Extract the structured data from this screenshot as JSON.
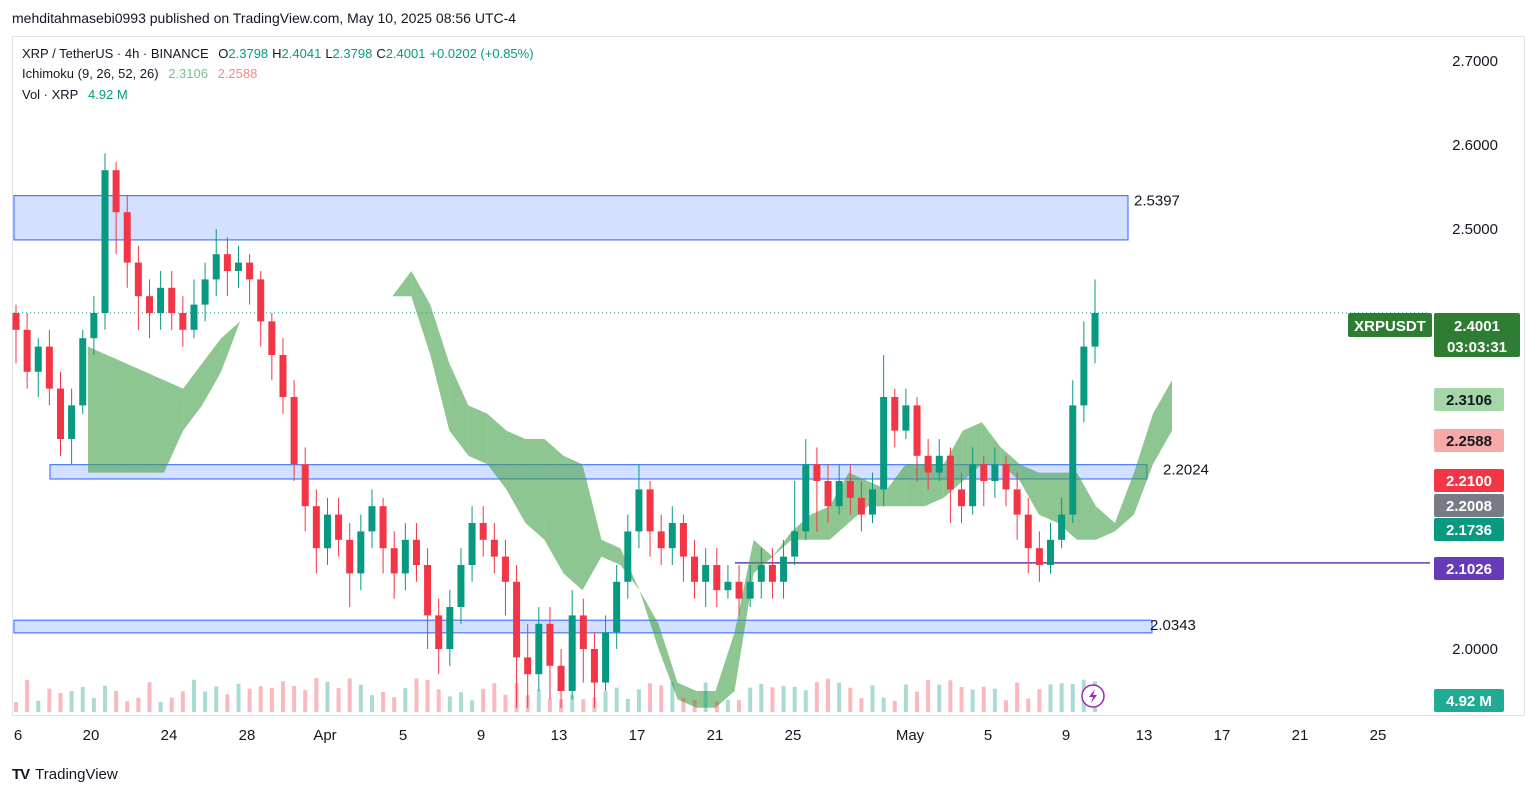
{
  "header": {
    "published": "mehditahmasebi0993 published on TradingView.com, May 10, 2025 08:56 UTC-4"
  },
  "legend": {
    "symbol": "XRP / TetherUS · 4h · BINANCE",
    "o_label": "O",
    "o": "2.3798",
    "h_label": "H",
    "h": "2.4041",
    "l_label": "L",
    "l": "2.3798",
    "c_label": "C",
    "c": "2.4001",
    "change": "+0.0202 (+0.85%)",
    "ichimoku_label": "Ichimoku (9, 26, 52, 26)",
    "ichimoku_v1": "2.3106",
    "ichimoku_v2": "2.2588",
    "vol_label": "Vol · XRP",
    "vol_value": "4.92 M"
  },
  "footer": {
    "brand": "TradingView",
    "logo_text": "TV"
  },
  "chart_data": {
    "type": "candlestick",
    "symbol": "XRPUSDT",
    "interval": "4h",
    "y_ticks": [
      "2.7000",
      "2.6000",
      "2.5000",
      "2.0000"
    ],
    "ylim": [
      1.925,
      2.725
    ],
    "x_ticks": [
      "6",
      "20",
      "24",
      "28",
      "Apr",
      "5",
      "9",
      "13",
      "17",
      "21",
      "25",
      "May",
      "5",
      "9",
      "13",
      "17",
      "21",
      "25"
    ],
    "last_price": {
      "symbol": "XRPUSDT",
      "value": "2.4001",
      "countdown": "03:03:31"
    },
    "price_tags": [
      {
        "label": "2.3106",
        "value": 2.3106,
        "color": "#a5d6a7",
        "text_color": "#131722"
      },
      {
        "label": "2.2588",
        "value": 2.2588,
        "color": "#f7a9a7",
        "text_color": "#131722"
      },
      {
        "label": "2.2100",
        "value": 2.21,
        "color": "#f23645",
        "text_color": "#ffffff"
      },
      {
        "label": "2.2008",
        "value": 2.2008,
        "color": "#787b86",
        "text_color": "#ffffff"
      },
      {
        "label": "2.1736",
        "value": 2.1736,
        "color": "#089981",
        "text_color": "#ffffff"
      },
      {
        "label": "2.1026",
        "value": 2.1026,
        "color": "#673ab7",
        "text_color": "#ffffff"
      },
      {
        "label": "4.92 M",
        "value": null,
        "color": "#22ab94",
        "text_color": "#ffffff"
      }
    ],
    "zones": [
      {
        "label": "2.5397",
        "top": 2.5397,
        "bottom": 2.487
      },
      {
        "label": "2.2024",
        "top": 2.2194,
        "bottom": 2.2024
      },
      {
        "label": "2.0343",
        "top": 2.0343,
        "bottom": 2.0192
      }
    ],
    "horizontal_line": {
      "value": 2.1026,
      "color": "#673ab7"
    },
    "candles": [
      [
        2.4,
        2.38,
        2.41,
        2.34
      ],
      [
        2.38,
        2.33,
        2.4,
        2.31
      ],
      [
        2.33,
        2.36,
        2.37,
        2.3
      ],
      [
        2.36,
        2.31,
        2.38,
        2.29
      ],
      [
        2.31,
        2.25,
        2.33,
        2.23
      ],
      [
        2.25,
        2.29,
        2.31,
        2.22
      ],
      [
        2.29,
        2.37,
        2.38,
        2.28
      ],
      [
        2.37,
        2.4,
        2.42,
        2.35
      ],
      [
        2.4,
        2.57,
        2.59,
        2.38
      ],
      [
        2.57,
        2.52,
        2.58,
        2.47
      ],
      [
        2.52,
        2.46,
        2.54,
        2.43
      ],
      [
        2.46,
        2.42,
        2.48,
        2.38
      ],
      [
        2.42,
        2.4,
        2.44,
        2.37
      ],
      [
        2.4,
        2.43,
        2.45,
        2.38
      ],
      [
        2.43,
        2.4,
        2.45,
        2.38
      ],
      [
        2.4,
        2.38,
        2.42,
        2.36
      ],
      [
        2.38,
        2.41,
        2.44,
        2.37
      ],
      [
        2.41,
        2.44,
        2.46,
        2.39
      ],
      [
        2.44,
        2.47,
        2.5,
        2.42
      ],
      [
        2.47,
        2.45,
        2.49,
        2.42
      ],
      [
        2.45,
        2.46,
        2.48,
        2.43
      ],
      [
        2.46,
        2.44,
        2.47,
        2.41
      ],
      [
        2.44,
        2.39,
        2.45,
        2.36
      ],
      [
        2.39,
        2.35,
        2.4,
        2.32
      ],
      [
        2.35,
        2.3,
        2.37,
        2.28
      ],
      [
        2.3,
        2.22,
        2.32,
        2.2
      ],
      [
        2.22,
        2.17,
        2.24,
        2.14
      ],
      [
        2.17,
        2.12,
        2.19,
        2.09
      ],
      [
        2.12,
        2.16,
        2.18,
        2.1
      ],
      [
        2.16,
        2.13,
        2.18,
        2.11
      ],
      [
        2.13,
        2.09,
        2.15,
        2.05
      ],
      [
        2.09,
        2.14,
        2.16,
        2.07
      ],
      [
        2.14,
        2.17,
        2.19,
        2.12
      ],
      [
        2.17,
        2.12,
        2.18,
        2.09
      ],
      [
        2.12,
        2.09,
        2.14,
        2.06
      ],
      [
        2.09,
        2.13,
        2.15,
        2.07
      ],
      [
        2.13,
        2.1,
        2.15,
        2.08
      ],
      [
        2.1,
        2.04,
        2.12,
        2.0
      ],
      [
        2.04,
        2.0,
        2.06,
        1.97
      ],
      [
        2.0,
        2.05,
        2.07,
        1.98
      ],
      [
        2.05,
        2.1,
        2.12,
        2.03
      ],
      [
        2.1,
        2.15,
        2.17,
        2.08
      ],
      [
        2.15,
        2.13,
        2.17,
        2.11
      ],
      [
        2.13,
        2.11,
        2.15,
        2.09
      ],
      [
        2.11,
        2.08,
        2.13,
        2.04
      ],
      [
        2.08,
        1.99,
        2.1,
        1.93
      ],
      [
        1.99,
        1.97,
        2.03,
        1.93
      ],
      [
        1.97,
        2.03,
        2.05,
        1.95
      ],
      [
        2.03,
        1.98,
        2.05,
        1.94
      ],
      [
        1.98,
        1.95,
        2.0,
        1.93
      ],
      [
        1.95,
        2.04,
        2.07,
        1.94
      ],
      [
        2.04,
        2.0,
        2.06,
        1.96
      ],
      [
        2.0,
        1.96,
        2.02,
        1.93
      ],
      [
        1.96,
        2.02,
        2.04,
        1.95
      ],
      [
        2.02,
        2.08,
        2.1,
        2.0
      ],
      [
        2.08,
        2.14,
        2.16,
        2.06
      ],
      [
        2.14,
        2.19,
        2.22,
        2.12
      ],
      [
        2.19,
        2.14,
        2.2,
        2.11
      ],
      [
        2.14,
        2.12,
        2.16,
        2.1
      ],
      [
        2.12,
        2.15,
        2.17,
        2.1
      ],
      [
        2.15,
        2.11,
        2.16,
        2.08
      ],
      [
        2.11,
        2.08,
        2.13,
        2.06
      ],
      [
        2.08,
        2.1,
        2.12,
        2.05
      ],
      [
        2.1,
        2.07,
        2.12,
        2.05
      ],
      [
        2.07,
        2.08,
        2.1,
        2.06
      ],
      [
        2.08,
        2.06,
        2.1,
        2.04
      ],
      [
        2.06,
        2.08,
        2.1,
        2.05
      ],
      [
        2.08,
        2.1,
        2.12,
        2.06
      ],
      [
        2.1,
        2.08,
        2.12,
        2.06
      ],
      [
        2.08,
        2.11,
        2.13,
        2.06
      ],
      [
        2.11,
        2.14,
        2.2,
        2.1
      ],
      [
        2.14,
        2.22,
        2.25,
        2.13
      ],
      [
        2.22,
        2.2,
        2.24,
        2.14
      ],
      [
        2.2,
        2.17,
        2.22,
        2.15
      ],
      [
        2.17,
        2.2,
        2.22,
        2.16
      ],
      [
        2.2,
        2.18,
        2.22,
        2.16
      ],
      [
        2.18,
        2.16,
        2.2,
        2.14
      ],
      [
        2.16,
        2.19,
        2.21,
        2.15
      ],
      [
        2.19,
        2.3,
        2.35,
        2.17
      ],
      [
        2.3,
        2.26,
        2.31,
        2.24
      ],
      [
        2.26,
        2.29,
        2.31,
        2.25
      ],
      [
        2.29,
        2.23,
        2.3,
        2.2
      ],
      [
        2.23,
        2.21,
        2.25,
        2.19
      ],
      [
        2.21,
        2.23,
        2.25,
        2.2
      ],
      [
        2.23,
        2.19,
        2.24,
        2.15
      ],
      [
        2.19,
        2.17,
        2.21,
        2.15
      ],
      [
        2.17,
        2.22,
        2.24,
        2.16
      ],
      [
        2.22,
        2.2,
        2.23,
        2.17
      ],
      [
        2.2,
        2.22,
        2.24,
        2.18
      ],
      [
        2.22,
        2.19,
        2.23,
        2.17
      ],
      [
        2.19,
        2.16,
        2.21,
        2.13
      ],
      [
        2.16,
        2.12,
        2.18,
        2.09
      ],
      [
        2.12,
        2.1,
        2.14,
        2.08
      ],
      [
        2.1,
        2.13,
        2.15,
        2.09
      ],
      [
        2.13,
        2.16,
        2.18,
        2.12
      ],
      [
        2.16,
        2.29,
        2.32,
        2.15
      ],
      [
        2.29,
        2.36,
        2.39,
        2.27
      ],
      [
        2.36,
        2.4,
        2.44,
        2.34
      ]
    ],
    "ichimoku_cloud": [
      [
        2.36,
        2.21
      ],
      [
        2.35,
        2.21
      ],
      [
        2.34,
        2.21
      ],
      [
        2.33,
        2.21
      ],
      [
        2.32,
        2.21
      ],
      [
        2.31,
        2.26
      ],
      [
        2.34,
        2.29
      ],
      [
        2.37,
        2.33
      ],
      [
        2.39,
        2.39
      ],
      [
        2.42,
        2.42
      ],
      [
        2.43,
        2.43
      ],
      [
        2.42,
        2.42
      ],
      [
        2.42,
        2.42
      ],
      [
        2.42,
        2.42
      ],
      [
        2.42,
        2.42
      ],
      [
        2.42,
        2.42
      ],
      [
        2.42,
        2.42
      ],
      [
        2.45,
        2.42
      ],
      [
        2.41,
        2.35
      ],
      [
        2.34,
        2.26
      ],
      [
        2.29,
        2.23
      ],
      [
        2.28,
        2.22
      ],
      [
        2.26,
        2.19
      ],
      [
        2.25,
        2.15
      ],
      [
        2.25,
        2.13
      ],
      [
        2.23,
        2.09
      ],
      [
        2.22,
        2.07
      ],
      [
        2.13,
        2.11
      ],
      [
        2.12,
        2.1
      ],
      [
        2.07,
        2.07
      ],
      [
        2.03,
        2.0
      ],
      [
        1.96,
        1.94
      ],
      [
        1.95,
        1.93
      ],
      [
        1.95,
        1.93
      ],
      [
        2.02,
        1.95
      ],
      [
        2.13,
        2.09
      ],
      [
        2.11,
        2.11
      ],
      [
        2.14,
        2.13
      ],
      [
        2.16,
        2.13
      ],
      [
        2.17,
        2.13
      ],
      [
        2.21,
        2.15
      ],
      [
        2.2,
        2.17
      ],
      [
        2.19,
        2.17
      ],
      [
        2.22,
        2.17
      ],
      [
        2.22,
        2.17
      ],
      [
        2.22,
        2.18
      ],
      [
        2.26,
        2.2
      ],
      [
        2.27,
        2.22
      ],
      [
        2.24,
        2.22
      ],
      [
        2.22,
        2.2
      ],
      [
        2.21,
        2.16
      ],
      [
        2.21,
        2.15
      ],
      [
        2.21,
        2.13
      ],
      [
        2.17,
        2.13
      ],
      [
        2.15,
        2.14
      ],
      [
        2.21,
        2.16
      ],
      [
        2.28,
        2.22
      ],
      [
        2.32,
        2.26
      ]
    ],
    "volume_note": "volume bars at bottom; last value 4.92 M"
  }
}
